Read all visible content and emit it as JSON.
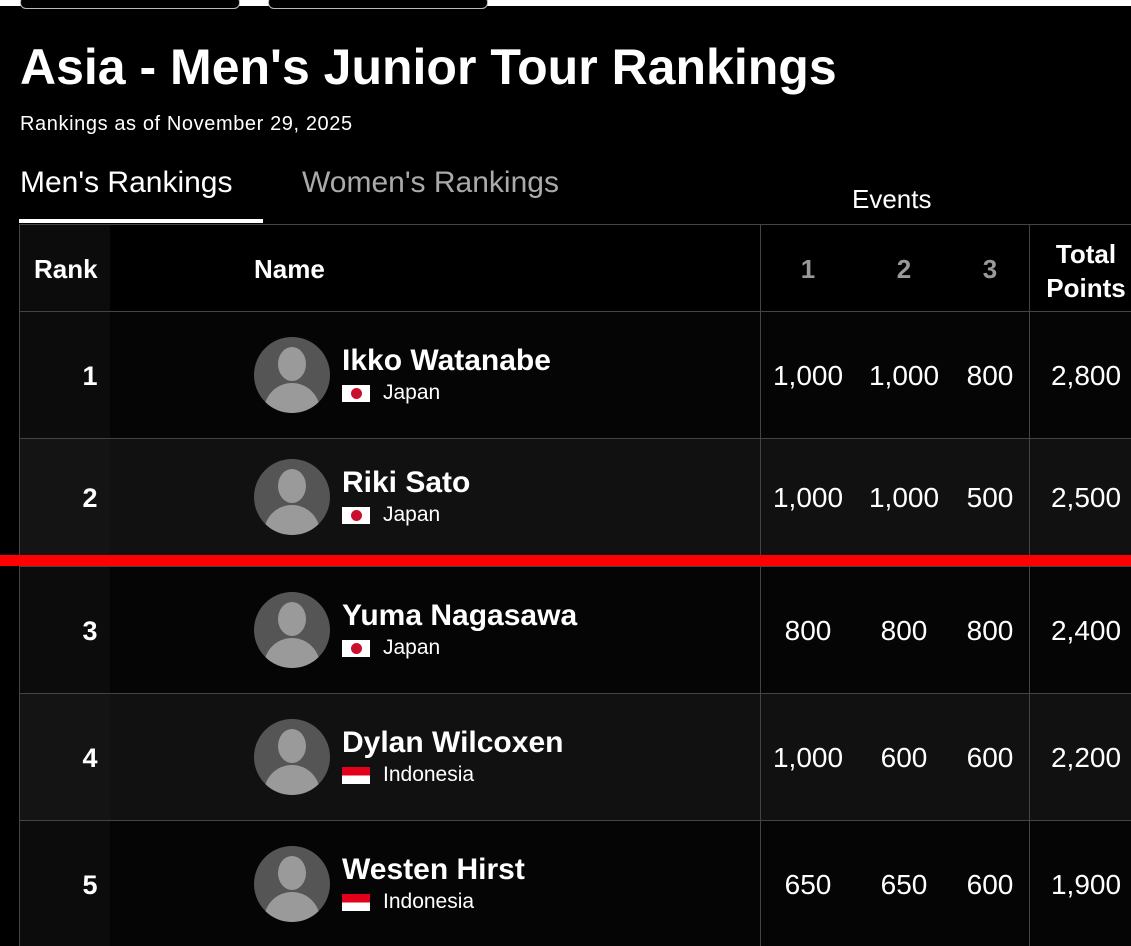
{
  "header": {
    "title": "Asia - Men's Junior Tour Rankings",
    "subtitle": "Rankings as of November 29, 2025"
  },
  "tabs": [
    "Men's Rankings",
    "Women's Rankings"
  ],
  "table": {
    "group_header": "Events",
    "columns": [
      "Rank",
      "Name",
      "1",
      "2",
      "3",
      "Total Points"
    ],
    "rows": [
      {
        "rank": "1",
        "name": "Ikko Watanabe",
        "country": "Japan",
        "events": [
          "1,000",
          "1,000",
          "800"
        ],
        "total": "2,800"
      },
      {
        "rank": "2",
        "name": "Riki Sato",
        "country": "Japan",
        "events": [
          "1,000",
          "1,000",
          "500"
        ],
        "total": "2,500"
      },
      {
        "rank": "3",
        "name": "Yuma Nagasawa",
        "country": "Japan",
        "events": [
          "800",
          "800",
          "800"
        ],
        "total": "2,400"
      },
      {
        "rank": "4",
        "name": "Dylan Wilcoxen",
        "country": "Indonesia",
        "events": [
          "1,000",
          "600",
          "600"
        ],
        "total": "2,200"
      },
      {
        "rank": "5",
        "name": "Westen Hirst",
        "country": "Indonesia",
        "events": [
          "650",
          "650",
          "600"
        ],
        "total": "1,900"
      }
    ]
  }
}
